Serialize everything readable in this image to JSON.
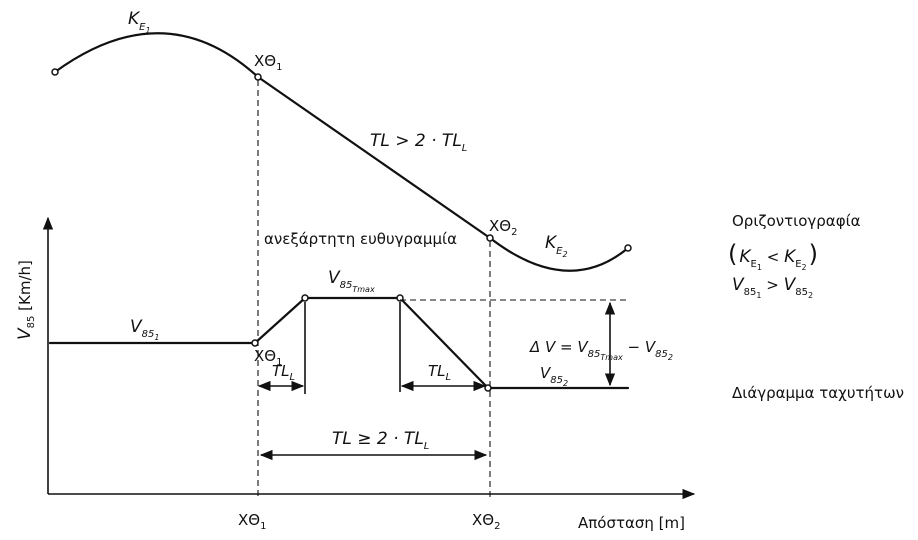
{
  "plan": {
    "curve1": {
      "K": "K",
      "sub": "E",
      "subsub": "1"
    },
    "curve2": {
      "K": "K",
      "sub": "E",
      "subsub": "2"
    },
    "xo1": {
      "main": "ΧΘ",
      "sub": "1"
    },
    "xo2": {
      "main": "ΧΘ",
      "sub": "2"
    },
    "condition": {
      "a": "TL > 2 · TL",
      "a_sub": "L"
    },
    "independent_label": "ανεξάρτητη ευθυγραμμία"
  },
  "speed": {
    "y_axis": {
      "v": "V",
      "sub": "85",
      "unit": " [Km/h]"
    },
    "v851": {
      "v": "V",
      "sub": "85",
      "subsub": "1"
    },
    "v85tmax": {
      "v": "V",
      "sub": "85",
      "subsub": "Tmax"
    },
    "v852": {
      "v": "V",
      "sub": "85",
      "subsub": "2"
    },
    "tll1": {
      "main": "TL",
      "sub": "L"
    },
    "tll2": {
      "main": "TL",
      "sub": "L"
    },
    "delta": {
      "a": "Δ V = V",
      "b": "85",
      "c": "Tmax",
      "d": " −  V",
      "e": "85",
      "f": "2"
    },
    "bottom_cond": {
      "a": "TL ≥ 2 · TL",
      "sub": "L"
    }
  },
  "x_axis": {
    "tick1": {
      "main": "ΧΘ",
      "sub": "1"
    },
    "tick2": {
      "main": "ΧΘ",
      "sub": "2"
    },
    "label": "Απόσταση [m]"
  },
  "legend": {
    "plan_title": "Οριζοντιογραφία",
    "plan_cond": {
      "open": "(",
      "k1": "K",
      "e1": "E",
      "n1": "1",
      "lt": " < ",
      "k2": "K",
      "e2": "E",
      "n2": "2",
      "close": ")"
    },
    "speed_cond": {
      "v1": "V",
      "s1": "85",
      "n1": "1",
      "gt": " > ",
      "v2": "V",
      "s2": "85",
      "n2": "2"
    },
    "speed_title": "Διάγραμμα ταχυτήτων"
  }
}
